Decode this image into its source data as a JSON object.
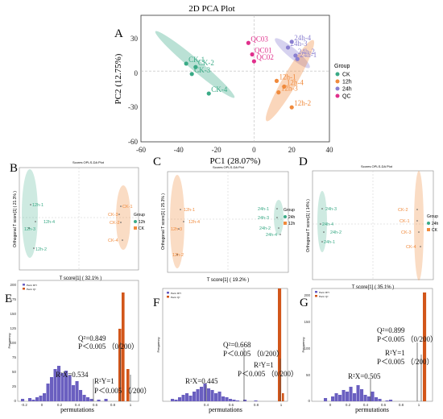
{
  "panels": {
    "A": "A",
    "B": "B",
    "C": "C",
    "D": "D",
    "E": "E",
    "F": "F",
    "G": "G"
  },
  "colors": {
    "CK": "#3aaa86",
    "12h": "#f08a3c",
    "24h": "#8a7fd0",
    "QC": "#e0308c",
    "r2x_bar": "#6a5fc0",
    "q2_bar": "#d2561a"
  },
  "chart_data": [
    {
      "id": "A",
      "type": "scatter",
      "title": "2D PCA Plot",
      "xlabel": "PC1 (28.07%)",
      "ylabel": "PC2 (12.75%)",
      "xlim": [
        -60,
        40
      ],
      "ylim": [
        -60,
        50
      ],
      "xticks": [
        -60,
        -40,
        -20,
        0,
        20,
        40
      ],
      "yticks": [
        -60,
        -30,
        0,
        30
      ],
      "legend_title": "Group",
      "legend_position": "right",
      "series": [
        {
          "name": "CK",
          "color": "#3aaa86",
          "points": [
            {
              "x": -36,
              "y": 8,
              "label": "CK-1"
            },
            {
              "x": -31,
              "y": 5,
              "label": "CK-2"
            },
            {
              "x": -33,
              "y": -1,
              "label": "CK-3"
            },
            {
              "x": -24,
              "y": -18,
              "label": "CK-4"
            }
          ]
        },
        {
          "name": "12h",
          "color": "#f08a3c",
          "points": [
            {
              "x": 12,
              "y": -7,
              "label": "12h-1"
            },
            {
              "x": 16,
              "y": -12,
              "label": "12h-4"
            },
            {
              "x": 13,
              "y": -17,
              "label": "12h-3"
            },
            {
              "x": 20,
              "y": -30,
              "label": "12h-2"
            }
          ]
        },
        {
          "name": "24h",
          "color": "#8a7fd0",
          "points": [
            {
              "x": 20,
              "y": 27,
              "label": "24h-4"
            },
            {
              "x": 18,
              "y": 22,
              "label": "24h-3"
            },
            {
              "x": 22,
              "y": 15,
              "label": "24h-2"
            },
            {
              "x": 23,
              "y": 12,
              "label": "24h-1"
            }
          ]
        },
        {
          "name": "QC",
          "color": "#e0308c",
          "points": [
            {
              "x": -1,
              "y": 16,
              "label": "QC01"
            },
            {
              "x": 0,
              "y": 10,
              "label": "QC02"
            },
            {
              "x": -3,
              "y": 26,
              "label": "QC03"
            }
          ]
        }
      ]
    },
    {
      "id": "B",
      "type": "scatter",
      "title": "Scores OPLS-DA Plot",
      "xlabel": "T score[1] ( 32.1% )",
      "ylabel": "Orthogonal T score[1] ( 21.3% )",
      "legend_title": "Group",
      "series": [
        {
          "name": "12h",
          "color": "#3aaa86",
          "labels": [
            "12h-1",
            "12h-4",
            "12h-3",
            "12h-2"
          ]
        },
        {
          "name": "CK",
          "color": "#f08a3c",
          "labels": [
            "CK-1",
            "CK-3",
            "CK-2",
            "CK-4"
          ]
        }
      ]
    },
    {
      "id": "C",
      "type": "scatter",
      "title": "Scores OPLS-DA Plot",
      "xlabel": "T score[1] ( 19.2% )",
      "ylabel": "Orthogonal T score[1] ( 25.3% )",
      "legend_title": "Group",
      "series": [
        {
          "name": "24h",
          "color": "#f08a3c",
          "labels": [
            "12h-1",
            "12h-4",
            "12h-3",
            "12h-2"
          ]
        },
        {
          "name": "12h",
          "color": "#3aaa86",
          "labels": [
            "24h-1",
            "24h-3",
            "24h-2",
            "24h-4"
          ]
        }
      ]
    },
    {
      "id": "D",
      "type": "scatter",
      "title": "Scores OPLS-DA Plot",
      "xlabel": "T score[1] ( 35.1% )",
      "ylabel": "Orthogonal T score[1] ( 14% )",
      "legend_title": "Group",
      "series": [
        {
          "name": "24h",
          "color": "#3aaa86",
          "labels": [
            "24h-3",
            "24h-4",
            "24h-2",
            "24h-1"
          ]
        },
        {
          "name": "CK",
          "color": "#f08a3c",
          "labels": [
            "CK-2",
            "CK-1",
            "CK-3",
            "CK-4"
          ]
        }
      ]
    },
    {
      "id": "E",
      "type": "bar",
      "xlabel": "permutations",
      "ylabel": "Frequency",
      "xticks": [
        -0.2,
        0.0,
        0.2,
        0.4,
        0.6,
        0.8,
        1.0
      ],
      "yticks": [
        0,
        25,
        50,
        75,
        100,
        125,
        150,
        175,
        200
      ],
      "legend": [
        "Perm R²Y",
        "Perm Q²"
      ],
      "annotations": [
        {
          "text": "Q²=0.849",
          "value": 0.849
        },
        {
          "text": "P＜0.005 （0/200）"
        },
        {
          "text": "R²X=0.534",
          "value": 0.534
        },
        {
          "text": "R²Y=1",
          "value": 1
        },
        {
          "text": "P＜0.005 （/200）"
        }
      ]
    },
    {
      "id": "F",
      "type": "bar",
      "xlabel": "permutations",
      "ylabel": "Frequency",
      "xticks": [
        0.4,
        0.6,
        0.8,
        1.0
      ],
      "legend": [
        "Perm R²Y",
        "Perm Q²"
      ],
      "annotations": [
        {
          "text": "Q²=0.668",
          "value": 0.668
        },
        {
          "text": "P＜0.005 （0/200）"
        },
        {
          "text": "R²X=0.445",
          "value": 0.445
        },
        {
          "text": "R²Y=1",
          "value": 1
        },
        {
          "text": "P＜0.005 （0/200）"
        }
      ]
    },
    {
      "id": "G",
      "type": "bar",
      "xlabel": "permutations",
      "ylabel": "Frequency",
      "xticks": [
        0.0,
        0.2,
        0.4,
        0.6,
        0.8,
        1.0
      ],
      "yticks": [
        0,
        50,
        100,
        150,
        200
      ],
      "legend": [
        "Perm R²Y",
        "Perm Q²"
      ],
      "annotations": [
        {
          "text": "Q²=0.899",
          "value": 0.899
        },
        {
          "text": "P＜0.005 （0/200）"
        },
        {
          "text": "R²X=0.505",
          "value": 0.505
        },
        {
          "text": "R²Y=1",
          "value": 1
        },
        {
          "text": "P＜0.005 （/200）"
        }
      ]
    }
  ]
}
